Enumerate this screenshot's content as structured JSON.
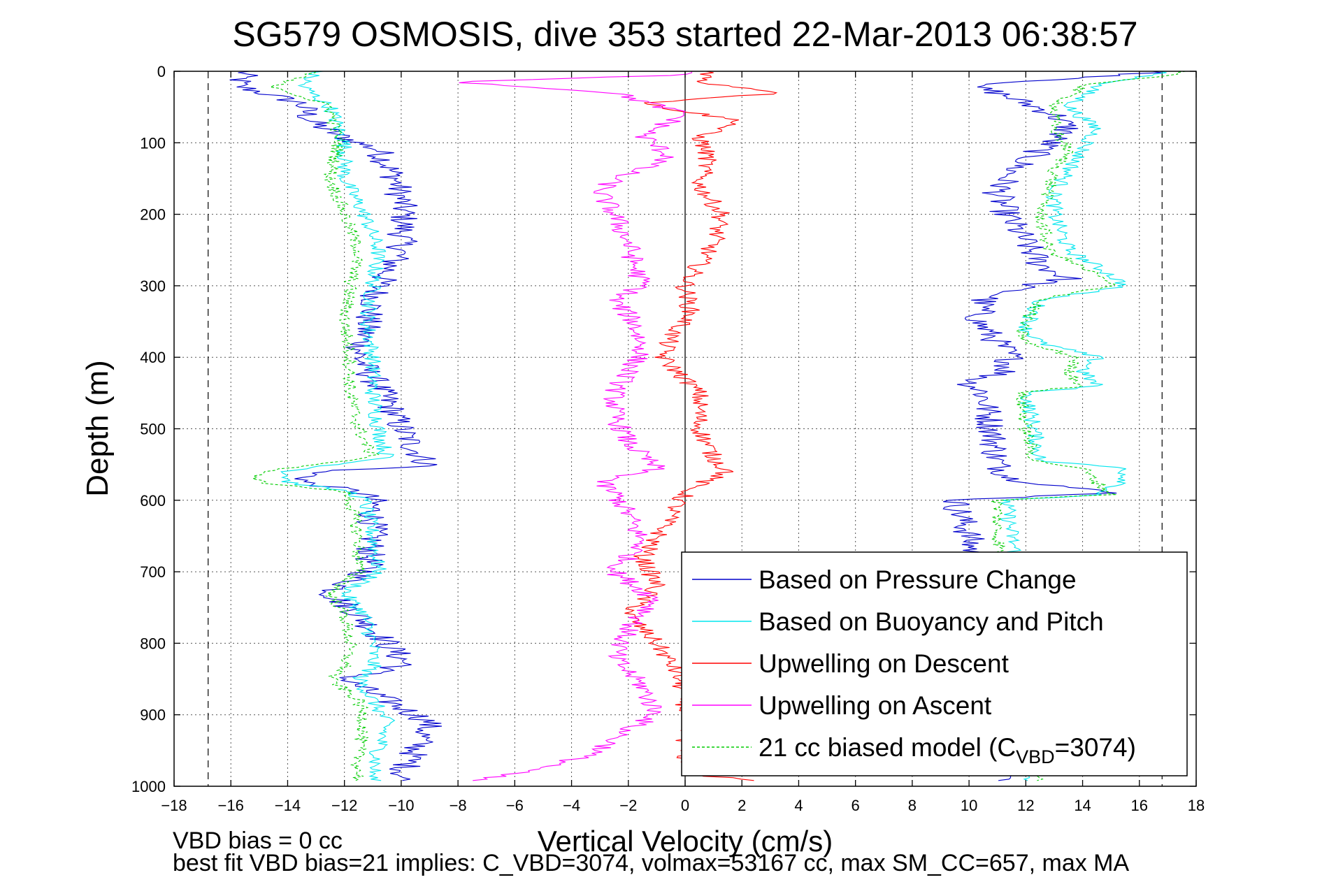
{
  "chart_data": {
    "type": "line",
    "title": "SG579 OSMOSIS, dive 353 started 22-Mar-2013 06:38:57",
    "xlabel": "Vertical Velocity (cm/s)",
    "ylabel": "Depth (m)",
    "xlim": [
      -18,
      18
    ],
    "ylim": [
      0,
      1000
    ],
    "y_reversed": true,
    "grid": true,
    "x_ticks": [
      -18,
      -16,
      -14,
      -12,
      -10,
      -8,
      -6,
      -4,
      -2,
      0,
      2,
      4,
      6,
      8,
      10,
      12,
      14,
      16,
      18
    ],
    "y_ticks": [
      0,
      100,
      200,
      300,
      400,
      500,
      600,
      700,
      800,
      900,
      1000
    ],
    "x_tick_labels": [
      "−18",
      "−16",
      "−14",
      "−12",
      "−10",
      "−8",
      "−6",
      "−4",
      "−2",
      "0",
      "2",
      "4",
      "6",
      "8",
      "10",
      "12",
      "14",
      "16",
      "18"
    ],
    "y_tick_labels": [
      "0",
      "100",
      "200",
      "300",
      "400",
      "500",
      "600",
      "700",
      "800",
      "900",
      "1000"
    ],
    "vertical_reference_lines": [
      -16.8,
      16.8
    ],
    "zero_line": 0,
    "legend_position": "bottom-right",
    "notes": [
      "VBD bias = 0 cc",
      "best fit VBD bias=21 implies: C_VBD=3074, volmax=53167 cc, max SM_CC=657, max MA"
    ],
    "series": [
      {
        "name": "Based on Pressure Change",
        "color": "#0000cc",
        "style": "solid",
        "noise": 0.55,
        "descent": [
          [
            0,
            -15.5
          ],
          [
            20,
            -15.8
          ],
          [
            45,
            -13.5
          ],
          [
            70,
            -13.2
          ],
          [
            90,
            -12.2
          ],
          [
            110,
            -10.8
          ],
          [
            150,
            -10.2
          ],
          [
            200,
            -9.9
          ],
          [
            250,
            -10.0
          ],
          [
            300,
            -10.8
          ],
          [
            350,
            -11.2
          ],
          [
            400,
            -11.5
          ],
          [
            430,
            -11.0
          ],
          [
            460,
            -10.5
          ],
          [
            500,
            -10.0
          ],
          [
            530,
            -9.5
          ],
          [
            552,
            -9.0
          ],
          [
            560,
            -13.0
          ],
          [
            575,
            -13.5
          ],
          [
            588,
            -11.5
          ],
          [
            600,
            -11.0
          ],
          [
            650,
            -11.0
          ],
          [
            700,
            -11.2
          ],
          [
            730,
            -12.5
          ],
          [
            760,
            -11.5
          ],
          [
            800,
            -10.5
          ],
          [
            830,
            -9.8
          ],
          [
            850,
            -12.0
          ],
          [
            880,
            -10.5
          ],
          [
            910,
            -9.0
          ],
          [
            950,
            -9.5
          ],
          [
            985,
            -10.0
          ],
          [
            992,
            -10.0
          ]
        ],
        "ascent": [
          [
            992,
            11.5
          ],
          [
            950,
            10.5
          ],
          [
            900,
            10.2
          ],
          [
            850,
            10.0
          ],
          [
            800,
            10.0
          ],
          [
            750,
            10.0
          ],
          [
            700,
            10.3
          ],
          [
            650,
            10.0
          ],
          [
            600,
            9.5
          ],
          [
            590,
            15.0
          ],
          [
            570,
            11.5
          ],
          [
            550,
            11.0
          ],
          [
            500,
            10.8
          ],
          [
            450,
            10.5
          ],
          [
            435,
            10.0
          ],
          [
            420,
            11.3
          ],
          [
            400,
            11.5
          ],
          [
            350,
            10.3
          ],
          [
            320,
            10.5
          ],
          [
            300,
            12.0
          ],
          [
            290,
            13.5
          ],
          [
            270,
            12.5
          ],
          [
            240,
            12.0
          ],
          [
            200,
            11.3
          ],
          [
            170,
            11.0
          ],
          [
            140,
            11.5
          ],
          [
            110,
            12.5
          ],
          [
            80,
            13.5
          ],
          [
            60,
            13.0
          ],
          [
            30,
            11.0
          ],
          [
            20,
            10.0
          ],
          [
            10,
            14.0
          ],
          [
            0,
            17.0
          ]
        ]
      },
      {
        "name": "Based on Buoyancy and Pitch",
        "color": "#00e5ee",
        "style": "solid",
        "noise": 0.3,
        "descent": [
          [
            0,
            -13.0
          ],
          [
            20,
            -13.5
          ],
          [
            50,
            -12.5
          ],
          [
            100,
            -12.0
          ],
          [
            150,
            -12.0
          ],
          [
            200,
            -11.3
          ],
          [
            250,
            -10.8
          ],
          [
            300,
            -11.0
          ],
          [
            350,
            -11.2
          ],
          [
            400,
            -11.0
          ],
          [
            450,
            -11.0
          ],
          [
            500,
            -10.8
          ],
          [
            540,
            -10.5
          ],
          [
            560,
            -14.0
          ],
          [
            575,
            -14.0
          ],
          [
            588,
            -11.8
          ],
          [
            600,
            -11.3
          ],
          [
            650,
            -11.0
          ],
          [
            700,
            -10.8
          ],
          [
            730,
            -12.0
          ],
          [
            760,
            -11.3
          ],
          [
            800,
            -11.0
          ],
          [
            835,
            -11.0
          ],
          [
            850,
            -11.5
          ],
          [
            880,
            -11.0
          ],
          [
            910,
            -10.5
          ],
          [
            950,
            -10.8
          ],
          [
            985,
            -11.0
          ],
          [
            992,
            -11.0
          ]
        ],
        "ascent": [
          [
            992,
            12.0
          ],
          [
            950,
            12.5
          ],
          [
            900,
            12.0
          ],
          [
            850,
            12.0
          ],
          [
            800,
            12.0
          ],
          [
            750,
            12.0
          ],
          [
            700,
            11.8
          ],
          [
            650,
            11.5
          ],
          [
            600,
            11.3
          ],
          [
            592,
            14.5
          ],
          [
            575,
            15.5
          ],
          [
            555,
            15.5
          ],
          [
            545,
            12.5
          ],
          [
            500,
            12.3
          ],
          [
            450,
            12.0
          ],
          [
            440,
            14.5
          ],
          [
            420,
            14.0
          ],
          [
            400,
            14.5
          ],
          [
            380,
            12.5
          ],
          [
            360,
            12.0
          ],
          [
            320,
            12.5
          ],
          [
            300,
            15.5
          ],
          [
            285,
            15.0
          ],
          [
            250,
            13.5
          ],
          [
            200,
            13.0
          ],
          [
            170,
            13.0
          ],
          [
            140,
            13.5
          ],
          [
            110,
            14.0
          ],
          [
            80,
            14.5
          ],
          [
            50,
            13.5
          ],
          [
            20,
            14.5
          ],
          [
            5,
            16.5
          ],
          [
            0,
            17.0
          ]
        ]
      },
      {
        "name": "Upwelling on Descent",
        "color": "#ff0000",
        "style": "solid",
        "noise": 0.35,
        "descent": [
          [
            0,
            1.0
          ],
          [
            15,
            0.5
          ],
          [
            30,
            3.5
          ],
          [
            45,
            -1.5
          ],
          [
            70,
            2.0
          ],
          [
            90,
            0.5
          ],
          [
            120,
            0.8
          ],
          [
            160,
            0.5
          ],
          [
            200,
            1.3
          ],
          [
            240,
            1.0
          ],
          [
            270,
            0.5
          ],
          [
            300,
            0.0
          ],
          [
            340,
            0.2
          ],
          [
            370,
            -0.5
          ],
          [
            400,
            -0.8
          ],
          [
            450,
            0.5
          ],
          [
            500,
            0.5
          ],
          [
            540,
            1.0
          ],
          [
            560,
            1.5
          ],
          [
            580,
            0.3
          ],
          [
            600,
            -0.2
          ],
          [
            640,
            -0.8
          ],
          [
            680,
            -1.5
          ],
          [
            720,
            -1.0
          ],
          [
            760,
            -2.0
          ],
          [
            800,
            -1.0
          ],
          [
            840,
            -0.3
          ],
          [
            880,
            0.0
          ],
          [
            920,
            0.0
          ],
          [
            960,
            0.0
          ],
          [
            985,
            0.5
          ],
          [
            992,
            2.5
          ]
        ]
      },
      {
        "name": "Upwelling on Ascent",
        "color": "#ff00ff",
        "style": "solid",
        "noise": 0.4,
        "ascent": [
          [
            992,
            -7.5
          ],
          [
            970,
            -4.5
          ],
          [
            950,
            -3.0
          ],
          [
            920,
            -2.0
          ],
          [
            900,
            -1.0
          ],
          [
            860,
            -1.5
          ],
          [
            820,
            -2.5
          ],
          [
            780,
            -2.0
          ],
          [
            740,
            -1.0
          ],
          [
            700,
            -2.5
          ],
          [
            660,
            -1.5
          ],
          [
            620,
            -2.0
          ],
          [
            590,
            -2.5
          ],
          [
            575,
            -3.0
          ],
          [
            555,
            -1.0
          ],
          [
            520,
            -2.0
          ],
          [
            480,
            -2.5
          ],
          [
            450,
            -2.5
          ],
          [
            420,
            -2.0
          ],
          [
            390,
            -1.5
          ],
          [
            350,
            -1.8
          ],
          [
            320,
            -2.5
          ],
          [
            300,
            -1.5
          ],
          [
            270,
            -1.8
          ],
          [
            240,
            -2.0
          ],
          [
            200,
            -2.5
          ],
          [
            170,
            -3.0
          ],
          [
            150,
            -2.5
          ],
          [
            120,
            -0.5
          ],
          [
            90,
            -1.5
          ],
          [
            60,
            0.0
          ],
          [
            30,
            -2.5
          ],
          [
            15,
            -8.0
          ],
          [
            5,
            0.0
          ],
          [
            0,
            0.0
          ]
        ]
      },
      {
        "name": "21 cc biased model (C",
        "name_subscript": "VBD",
        "name_suffix": "=3074)",
        "color": "#00cc00",
        "style": "dashed",
        "noise": 0.25,
        "descent": [
          [
            0,
            -13.0
          ],
          [
            20,
            -14.5
          ],
          [
            50,
            -12.5
          ],
          [
            100,
            -12.2
          ],
          [
            150,
            -12.5
          ],
          [
            200,
            -12.0
          ],
          [
            250,
            -11.5
          ],
          [
            300,
            -11.8
          ],
          [
            350,
            -12.0
          ],
          [
            400,
            -11.8
          ],
          [
            450,
            -11.8
          ],
          [
            500,
            -11.5
          ],
          [
            540,
            -11.0
          ],
          [
            560,
            -15.0
          ],
          [
            575,
            -15.0
          ],
          [
            588,
            -12.0
          ],
          [
            600,
            -11.8
          ],
          [
            650,
            -11.5
          ],
          [
            700,
            -11.5
          ],
          [
            730,
            -12.5
          ],
          [
            760,
            -12.0
          ],
          [
            800,
            -11.8
          ],
          [
            835,
            -12.0
          ],
          [
            850,
            -12.5
          ],
          [
            880,
            -11.5
          ],
          [
            910,
            -11.3
          ],
          [
            950,
            -11.5
          ],
          [
            985,
            -11.5
          ],
          [
            992,
            -11.5
          ]
        ],
        "ascent": [
          [
            992,
            12.5
          ],
          [
            950,
            11.5
          ],
          [
            900,
            11.5
          ],
          [
            850,
            11.3
          ],
          [
            800,
            11.5
          ],
          [
            750,
            11.5
          ],
          [
            700,
            11.3
          ],
          [
            650,
            11.0
          ],
          [
            600,
            11.0
          ],
          [
            592,
            15.0
          ],
          [
            575,
            14.5
          ],
          [
            555,
            14.0
          ],
          [
            545,
            12.3
          ],
          [
            500,
            12.0
          ],
          [
            450,
            11.8
          ],
          [
            440,
            14.0
          ],
          [
            420,
            13.5
          ],
          [
            400,
            13.8
          ],
          [
            380,
            12.0
          ],
          [
            360,
            11.8
          ],
          [
            320,
            12.5
          ],
          [
            300,
            15.0
          ],
          [
            285,
            14.5
          ],
          [
            250,
            12.8
          ],
          [
            200,
            12.5
          ],
          [
            170,
            12.8
          ],
          [
            140,
            13.0
          ],
          [
            110,
            13.5
          ],
          [
            80,
            13.0
          ],
          [
            50,
            13.0
          ],
          [
            20,
            14.0
          ],
          [
            5,
            17.0
          ],
          [
            0,
            17.5
          ]
        ]
      }
    ]
  }
}
